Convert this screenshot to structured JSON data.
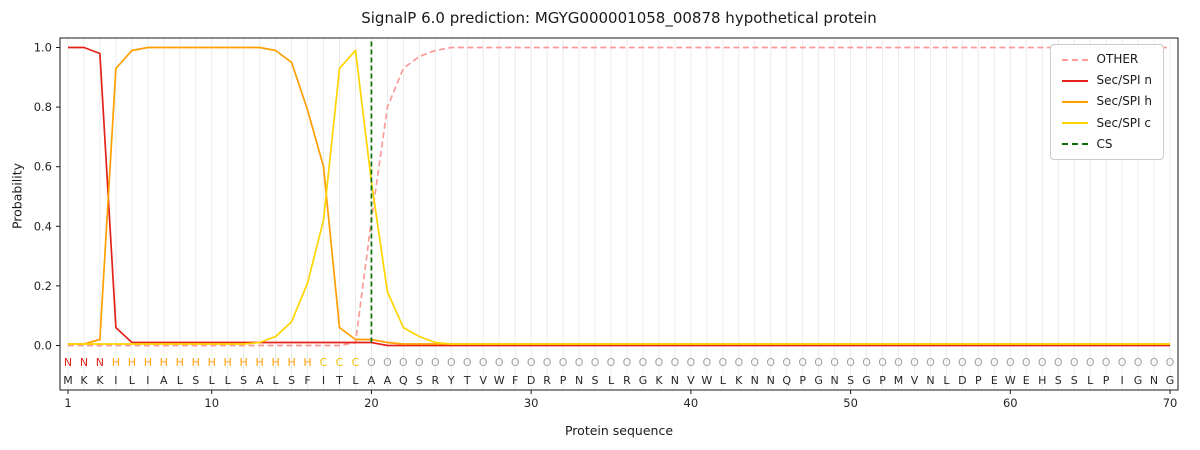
{
  "chart_data": {
    "type": "line",
    "title": "SignalP 6.0 prediction: MGYG000001058_00878 hypothetical protein",
    "xlabel": "Protein sequence",
    "ylabel": "Probability",
    "x_ticks": [
      1,
      10,
      20,
      30,
      40,
      50,
      60,
      70
    ],
    "y_ticks": [
      0.0,
      0.2,
      0.4,
      0.6,
      0.8,
      1.0
    ],
    "ylim": [
      0,
      1
    ],
    "xlim": [
      1,
      70
    ],
    "grid": "vertical-light",
    "legend_position": "upper-right",
    "sequence": "MKKILIALSLLSALSFITLAAQSRYTVWFDRPNSLRGKNVWLKNNQPGNSGPMVNLDPEWEHSSLPIGNG",
    "sequence_color": "#262626",
    "regions": [
      {
        "label": "N",
        "name": "n-region",
        "color": "#e32219",
        "start": 1,
        "end": 3
      },
      {
        "label": "H",
        "name": "h-region",
        "color": "#ff9f00",
        "start": 4,
        "end": 16
      },
      {
        "label": "C",
        "name": "c-region",
        "color": "#eec200",
        "start": 17,
        "end": 19
      },
      {
        "label": "O",
        "name": "other-region",
        "color": "#a3a3a3",
        "start": 20,
        "end": 70
      }
    ],
    "series": [
      {
        "name": "OTHER",
        "color": "#fb9a99",
        "dashed": true,
        "values": [
          0,
          0,
          0,
          0,
          0,
          0,
          0,
          0,
          0,
          0,
          0,
          0,
          0,
          0,
          0,
          0,
          0,
          0,
          0.01,
          0.42,
          0.8,
          0.93,
          0.97,
          0.99,
          1,
          1,
          1,
          1,
          1,
          1,
          1,
          1,
          1,
          1,
          1,
          1,
          1,
          1,
          1,
          1,
          1,
          1,
          1,
          1,
          1,
          1,
          1,
          1,
          1,
          1,
          1,
          1,
          1,
          1,
          1,
          1,
          1,
          1,
          1,
          1,
          1,
          1,
          1,
          1,
          1,
          1,
          1,
          1,
          1,
          1
        ]
      },
      {
        "name": "Sec/SPI n",
        "color": "#e32219",
        "dashed": false,
        "values": [
          1,
          1,
          0.98,
          0.06,
          0.01,
          0.01,
          0.01,
          0.01,
          0.01,
          0.01,
          0.01,
          0.01,
          0.01,
          0.01,
          0.01,
          0.01,
          0.01,
          0.01,
          0.01,
          0.01,
          0,
          0,
          0,
          0,
          0,
          0,
          0,
          0,
          0,
          0,
          0,
          0,
          0,
          0,
          0,
          0,
          0,
          0,
          0,
          0,
          0,
          0,
          0,
          0,
          0,
          0,
          0,
          0,
          0,
          0,
          0,
          0,
          0,
          0,
          0,
          0,
          0,
          0,
          0,
          0,
          0,
          0,
          0,
          0,
          0,
          0,
          0,
          0,
          0,
          0
        ]
      },
      {
        "name": "Sec/SPI h",
        "color": "#ff9f00",
        "dashed": false,
        "values": [
          0.005,
          0.005,
          0.02,
          0.93,
          0.99,
          1,
          1,
          1,
          1,
          1,
          1,
          1,
          1,
          0.99,
          0.95,
          0.79,
          0.6,
          0.06,
          0.02,
          0.02,
          0.01,
          0.005,
          0.005,
          0.005,
          0.005,
          0.005,
          0.005,
          0.005,
          0.005,
          0.005,
          0.005,
          0.005,
          0.005,
          0.005,
          0.005,
          0.005,
          0.005,
          0.005,
          0.005,
          0.005,
          0.005,
          0.005,
          0.005,
          0.005,
          0.005,
          0.005,
          0.005,
          0.005,
          0.005,
          0.005,
          0.005,
          0.005,
          0.005,
          0.005,
          0.005,
          0.005,
          0.005,
          0.005,
          0.005,
          0.005,
          0.005,
          0.005,
          0.005,
          0.005,
          0.005,
          0.005,
          0.005,
          0.005,
          0.005,
          0.005
        ]
      },
      {
        "name": "Sec/SPI c",
        "color": "#ffd500",
        "dashed": false,
        "values": [
          0.005,
          0.005,
          0.005,
          0.005,
          0.005,
          0.005,
          0.005,
          0.005,
          0.005,
          0.005,
          0.005,
          0.005,
          0.01,
          0.03,
          0.08,
          0.21,
          0.42,
          0.93,
          0.99,
          0.55,
          0.18,
          0.06,
          0.03,
          0.01,
          0.005,
          0.005,
          0.005,
          0.005,
          0.005,
          0.005,
          0.005,
          0.005,
          0.005,
          0.005,
          0.005,
          0.005,
          0.005,
          0.005,
          0.005,
          0.005,
          0.005,
          0.005,
          0.005,
          0.005,
          0.005,
          0.005,
          0.005,
          0.005,
          0.005,
          0.005,
          0.005,
          0.005,
          0.005,
          0.005,
          0.005,
          0.005,
          0.005,
          0.005,
          0.005,
          0.005,
          0.005,
          0.005,
          0.005,
          0.005,
          0.005,
          0.005,
          0.005,
          0.005,
          0.005,
          0.005
        ]
      }
    ],
    "cs": {
      "name": "CS",
      "position": 20,
      "color": "#0b6e0b",
      "dashed": true
    }
  }
}
